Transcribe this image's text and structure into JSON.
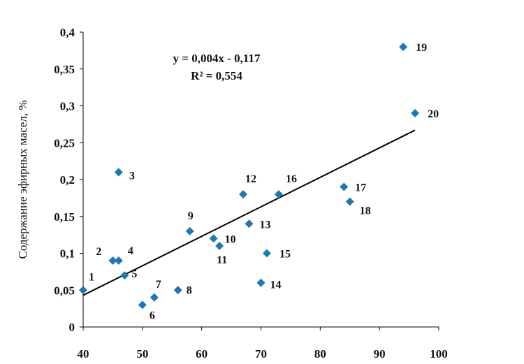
{
  "chart_data": {
    "type": "scatter",
    "title": "",
    "xlabel": "",
    "ylabel": "Содержание эфирных масел, %",
    "xlim": [
      40,
      100
    ],
    "ylim": [
      0,
      0.4
    ],
    "x_ticks": [
      "40",
      "50",
      "60",
      "70",
      "80",
      "90",
      "100"
    ],
    "y_ticks": [
      "0",
      "0,05",
      "0,1",
      "0,15",
      "0,2",
      "0,25",
      "0,3",
      "0,35",
      "0,4"
    ],
    "grid": false,
    "marker_color": "#1f77b4",
    "trendline": {
      "type": "linear",
      "slope": 0.004,
      "intercept": -0.117,
      "equation": "y = 0,004x - 0,117",
      "r2": "R² = 0,554"
    },
    "points": [
      {
        "label": "1",
        "x": 40,
        "y": 0.05
      },
      {
        "label": "2",
        "x": 45,
        "y": 0.09
      },
      {
        "label": "3",
        "x": 46,
        "y": 0.21
      },
      {
        "label": "4",
        "x": 46,
        "y": 0.09
      },
      {
        "label": "5",
        "x": 47,
        "y": 0.07
      },
      {
        "label": "6",
        "x": 50,
        "y": 0.03
      },
      {
        "label": "7",
        "x": 52,
        "y": 0.04
      },
      {
        "label": "8",
        "x": 56,
        "y": 0.05
      },
      {
        "label": "9",
        "x": 58,
        "y": 0.13
      },
      {
        "label": "10",
        "x": 62,
        "y": 0.12
      },
      {
        "label": "11",
        "x": 63,
        "y": 0.11
      },
      {
        "label": "12",
        "x": 67,
        "y": 0.18
      },
      {
        "label": "13",
        "x": 68,
        "y": 0.14
      },
      {
        "label": "14",
        "x": 70,
        "y": 0.06
      },
      {
        "label": "15",
        "x": 71,
        "y": 0.1
      },
      {
        "label": "16",
        "x": 73,
        "y": 0.18
      },
      {
        "label": "17",
        "x": 84,
        "y": 0.19
      },
      {
        "label": "18",
        "x": 85,
        "y": 0.17
      },
      {
        "label": "19",
        "x": 94,
        "y": 0.38
      },
      {
        "label": "20",
        "x": 96,
        "y": 0.29
      }
    ]
  }
}
